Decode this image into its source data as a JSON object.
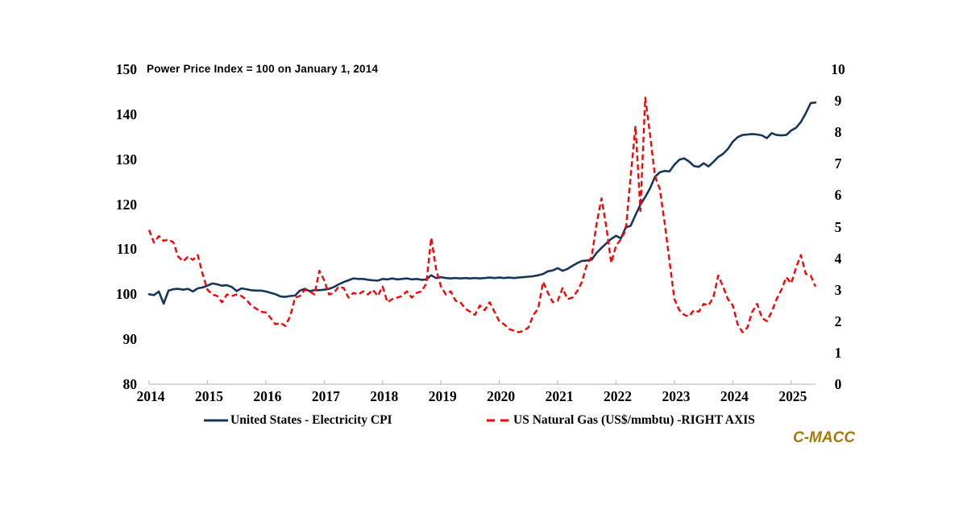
{
  "title": {
    "text": "Power Price Index = 100 on January 1, 2014"
  },
  "branding": {
    "text": "C-MACC",
    "color": "#a6790a"
  },
  "legend": [
    {
      "label": "United States - Electricity CPI",
      "color": "#17365d",
      "style": "solid"
    },
    {
      "label": "US Natural Gas (US$/mmbtu) -RIGHT AXIS",
      "color": "#ff0000",
      "style": "dashed"
    }
  ],
  "chart_data": {
    "type": "line",
    "title": "Power Price Index = 100 on January 1, 2014",
    "x_unit": "month",
    "x_start": "2014-01",
    "x_end": "2025-06",
    "x_tick_labels": [
      "2014",
      "2015",
      "2016",
      "2017",
      "2018",
      "2019",
      "2020",
      "2021",
      "2022",
      "2023",
      "2024",
      "2025"
    ],
    "grid": false,
    "legend_position": "bottom",
    "axis_color": "#bfbfbf",
    "left_axis": {
      "range": [
        80,
        150
      ],
      "ticks": [
        80,
        90,
        100,
        110,
        120,
        130,
        140,
        150
      ]
    },
    "right_axis": {
      "range": [
        0,
        10
      ],
      "ticks": [
        0,
        1,
        2,
        3,
        4,
        5,
        6,
        7,
        8,
        9,
        10
      ]
    },
    "series": [
      {
        "name": "United States - Electricity CPI",
        "axis": "left",
        "color": "#17365d",
        "line": "solid",
        "values": [
          100.0,
          99.8,
          100.6,
          97.9,
          100.8,
          101.1,
          101.2,
          101.0,
          101.2,
          100.6,
          101.3,
          101.5,
          101.9,
          102.4,
          102.2,
          101.9,
          102.0,
          101.6,
          100.7,
          101.3,
          101.1,
          100.9,
          100.8,
          100.8,
          100.6,
          100.3,
          100.0,
          99.5,
          99.4,
          99.6,
          99.7,
          100.8,
          101.2,
          100.7,
          100.9,
          100.9,
          101.0,
          101.2,
          101.6,
          102.2,
          102.7,
          103.1,
          103.5,
          103.4,
          103.4,
          103.2,
          103.1,
          103.0,
          103.4,
          103.3,
          103.5,
          103.3,
          103.4,
          103.5,
          103.3,
          103.4,
          103.2,
          103.3,
          104.2,
          103.6,
          103.8,
          103.6,
          103.5,
          103.6,
          103.5,
          103.6,
          103.5,
          103.6,
          103.5,
          103.6,
          103.7,
          103.6,
          103.7,
          103.6,
          103.7,
          103.6,
          103.7,
          103.8,
          103.9,
          104.0,
          104.2,
          104.5,
          105.1,
          105.3,
          105.8,
          105.2,
          105.6,
          106.3,
          106.9,
          107.4,
          107.5,
          107.7,
          109.2,
          110.3,
          111.3,
          112.3,
          113.0,
          112.4,
          114.9,
          115.2,
          117.6,
          119.9,
          121.6,
          123.6,
          126.1,
          127.1,
          127.4,
          127.3,
          128.8,
          129.9,
          130.2,
          129.5,
          128.5,
          128.3,
          129.1,
          128.4,
          129.4,
          130.5,
          131.2,
          132.3,
          133.9,
          134.9,
          135.4,
          135.5,
          135.6,
          135.5,
          135.3,
          134.7,
          135.8,
          135.4,
          135.3,
          135.4,
          136.4,
          137.0,
          138.3,
          140.2,
          142.5,
          142.6
        ]
      },
      {
        "name": "US Natural Gas (US$/mmbtu) -RIGHT AXIS",
        "axis": "right",
        "color": "#ff0000",
        "line": "dashed",
        "values": [
          4.9,
          4.5,
          4.7,
          4.55,
          4.6,
          4.5,
          4.05,
          3.9,
          4.05,
          3.95,
          4.1,
          3.5,
          3.0,
          2.85,
          2.8,
          2.6,
          2.85,
          2.8,
          2.85,
          2.8,
          2.68,
          2.5,
          2.4,
          2.3,
          2.28,
          2.1,
          1.9,
          1.95,
          1.85,
          2.15,
          2.75,
          2.8,
          3.0,
          2.95,
          2.85,
          3.6,
          3.3,
          2.85,
          2.9,
          3.1,
          3.05,
          2.75,
          2.9,
          2.85,
          2.95,
          2.85,
          3.0,
          2.8,
          3.1,
          2.6,
          2.7,
          2.75,
          2.8,
          2.95,
          2.75,
          2.9,
          2.95,
          3.2,
          4.65,
          3.65,
          3.1,
          2.85,
          2.95,
          2.65,
          2.6,
          2.4,
          2.3,
          2.2,
          2.5,
          2.35,
          2.6,
          2.3,
          2.0,
          1.9,
          1.75,
          1.7,
          1.65,
          1.7,
          1.8,
          2.2,
          2.4,
          3.25,
          2.9,
          2.6,
          2.65,
          3.05,
          2.7,
          2.75,
          2.95,
          3.25,
          3.8,
          4.05,
          5.1,
          5.9,
          5.0,
          3.85,
          4.4,
          4.6,
          4.9,
          6.6,
          8.2,
          5.5,
          9.1,
          7.9,
          6.6,
          6.2,
          5.1,
          3.9,
          2.7,
          2.35,
          2.2,
          2.15,
          2.35,
          2.3,
          2.55,
          2.5,
          2.75,
          3.45,
          3.1,
          2.7,
          2.5,
          1.9,
          1.65,
          1.8,
          2.3,
          2.55,
          2.1,
          2.0,
          2.3,
          2.7,
          3.0,
          3.4,
          3.2,
          3.7,
          4.1,
          3.5,
          3.45,
          3.1
        ]
      }
    ]
  }
}
